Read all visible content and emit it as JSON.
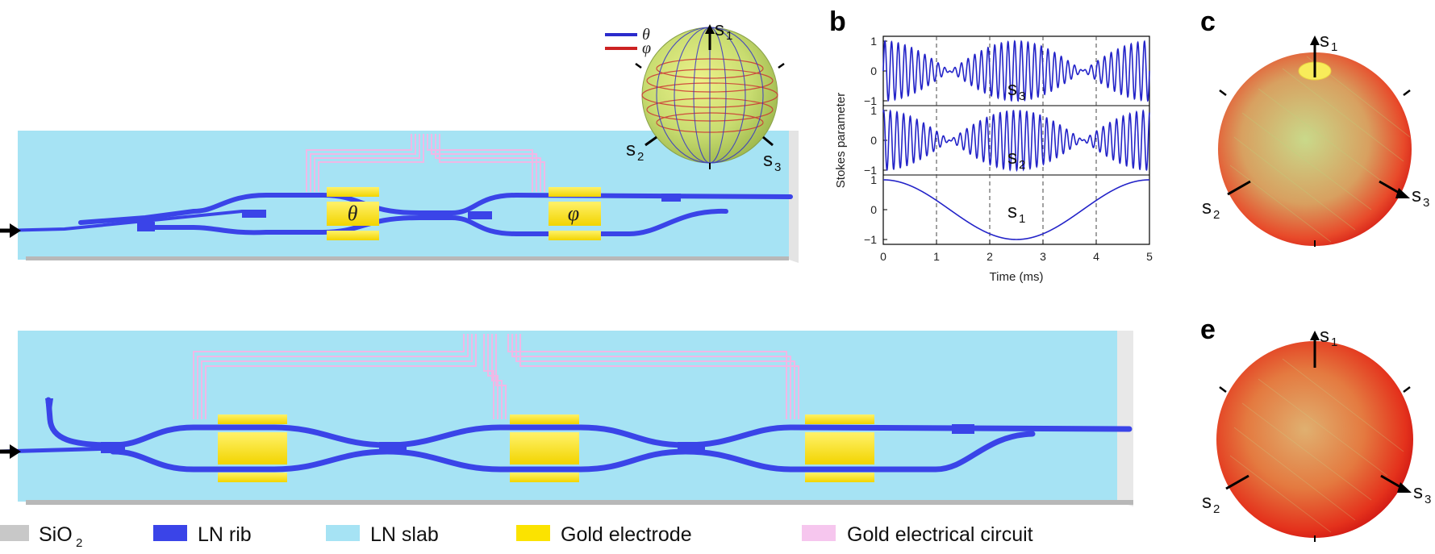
{
  "panels": {
    "b": "b",
    "c": "c",
    "e": "e"
  },
  "modulators": {
    "theta": "θ",
    "phi": "φ"
  },
  "sphere_legend": [
    {
      "symbol": "θ",
      "color": "#2b2bcc"
    },
    {
      "symbol": "φ",
      "color": "#cc2222"
    }
  ],
  "stokes_axes": {
    "base": "s",
    "s1": "1",
    "s2": "2",
    "s3": "3"
  },
  "chart_data": {
    "type": "line",
    "xlabel": "Time (ms)",
    "ylabel": "Stokes parameter",
    "xlim": [
      0,
      5
    ],
    "ylim": [
      -1,
      1
    ],
    "x_ticks": [
      "0",
      "1",
      "2",
      "3",
      "4",
      "5"
    ],
    "y_ticks": [
      "1",
      "0",
      "−1"
    ],
    "grid_x_dashed": [
      1,
      2,
      3,
      4
    ],
    "series": [
      {
        "name": "s3",
        "label_base": "s",
        "label_sub": "3",
        "envelope": "cos(2π·t/5)",
        "carrier_cycles": 40
      },
      {
        "name": "s2",
        "label_base": "s",
        "label_sub": "2",
        "envelope": "cos(2π·t/5)",
        "carrier_cycles": 40
      },
      {
        "name": "s1",
        "label_base": "s",
        "label_sub": "1",
        "formula": "cos(2π·t/5)"
      }
    ],
    "color": "#2323c8"
  },
  "legend": [
    {
      "label": "SiO",
      "sub": "2",
      "color": "#c8c8c8"
    },
    {
      "label": "LN rib",
      "sub": "",
      "color": "#3a44e8"
    },
    {
      "label": "LN slab",
      "sub": "",
      "color": "#a6e3f4"
    },
    {
      "label": "Gold electrode",
      "sub": "",
      "color": "#fbe300"
    },
    {
      "label": "Gold electrical circuit",
      "sub": "",
      "color": "#f6c6ee"
    }
  ]
}
